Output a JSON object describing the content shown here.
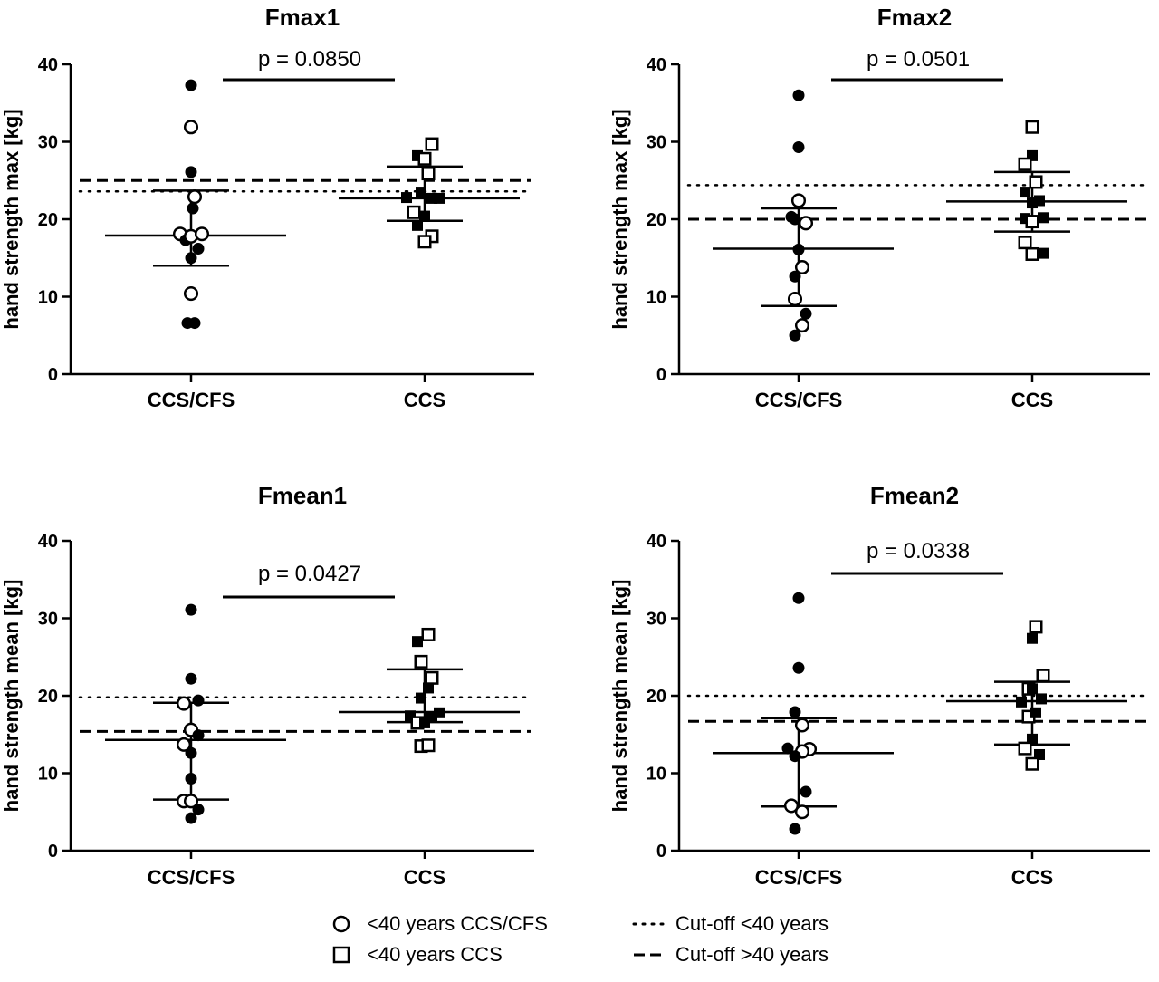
{
  "chart_data": [
    {
      "type": "scatter",
      "title": "Fmax1",
      "ylabel": "hand strength max [kg]",
      "ylim": [
        0,
        40
      ],
      "yticks": [
        0,
        10,
        20,
        30,
        40
      ],
      "categories": [
        "CCS/CFS",
        "CCS"
      ],
      "p_value": "p = 0.0850",
      "cutoff_under40": 23.6,
      "cutoff_over40": 25.0,
      "groups": [
        {
          "category": "CCS/CFS",
          "median": 17.9,
          "q1": 14.0,
          "q3": 23.7,
          "points": [
            {
              "offset": 0,
              "y": 37.3,
              "filled": true
            },
            {
              "offset": 0,
              "y": 31.9,
              "filled": false
            },
            {
              "offset": 0,
              "y": 26.1,
              "filled": true
            },
            {
              "offset": 0.4,
              "y": 22.9,
              "filled": false
            },
            {
              "offset": 0.2,
              "y": 21.4,
              "filled": true
            },
            {
              "offset": -1.2,
              "y": 18.1,
              "filled": false
            },
            {
              "offset": -0.6,
              "y": 17.3,
              "filled": true
            },
            {
              "offset": 0,
              "y": 17.8,
              "filled": false
            },
            {
              "offset": 0.8,
              "y": 16.2,
              "filled": true
            },
            {
              "offset": 1.2,
              "y": 18.1,
              "filled": false
            },
            {
              "offset": 0,
              "y": 15.0,
              "filled": true
            },
            {
              "offset": 0,
              "y": 10.4,
              "filled": false
            },
            {
              "offset": -0.4,
              "y": 6.6,
              "filled": true
            },
            {
              "offset": 0.4,
              "y": 6.6,
              "filled": true
            }
          ]
        },
        {
          "category": "CCS",
          "median": 22.7,
          "q1": 19.8,
          "q3": 26.8,
          "points": [
            {
              "offset": 0.8,
              "y": 29.7,
              "filled": false
            },
            {
              "offset": -0.8,
              "y": 28.2,
              "filled": true
            },
            {
              "offset": 0,
              "y": 27.8,
              "filled": false
            },
            {
              "offset": 0.4,
              "y": 25.9,
              "filled": false
            },
            {
              "offset": -2.0,
              "y": 22.8,
              "filled": true
            },
            {
              "offset": -0.4,
              "y": 23.5,
              "filled": true
            },
            {
              "offset": 0.8,
              "y": 22.7,
              "filled": true
            },
            {
              "offset": 1.6,
              "y": 22.7,
              "filled": true
            },
            {
              "offset": -1.2,
              "y": 20.9,
              "filled": false
            },
            {
              "offset": -0.8,
              "y": 19.2,
              "filled": true
            },
            {
              "offset": 0,
              "y": 20.4,
              "filled": true
            },
            {
              "offset": 0.8,
              "y": 17.8,
              "filled": false
            },
            {
              "offset": 0,
              "y": 17.1,
              "filled": false
            }
          ]
        }
      ]
    },
    {
      "type": "scatter",
      "title": "Fmax2",
      "ylabel": "hand strength max [kg]",
      "ylim": [
        0,
        40
      ],
      "yticks": [
        0,
        10,
        20,
        30,
        40
      ],
      "categories": [
        "CCS/CFS",
        "CCS"
      ],
      "p_value": "p = 0.0501",
      "cutoff_under40": 24.4,
      "cutoff_over40": 20.0,
      "groups": [
        {
          "category": "CCS/CFS",
          "median": 16.2,
          "q1": 8.8,
          "q3": 21.4,
          "points": [
            {
              "offset": 0,
              "y": 36.0,
              "filled": true
            },
            {
              "offset": 0,
              "y": 29.3,
              "filled": true
            },
            {
              "offset": 0,
              "y": 22.4,
              "filled": false
            },
            {
              "offset": -0.8,
              "y": 20.3,
              "filled": true
            },
            {
              "offset": -0.4,
              "y": 20.0,
              "filled": true
            },
            {
              "offset": 0.8,
              "y": 19.5,
              "filled": false
            },
            {
              "offset": 0,
              "y": 16.1,
              "filled": true
            },
            {
              "offset": 0.4,
              "y": 13.8,
              "filled": false
            },
            {
              "offset": -0.4,
              "y": 12.6,
              "filled": true
            },
            {
              "offset": -0.4,
              "y": 9.7,
              "filled": false
            },
            {
              "offset": 0.8,
              "y": 7.8,
              "filled": true
            },
            {
              "offset": 0.4,
              "y": 6.3,
              "filled": false
            },
            {
              "offset": -0.4,
              "y": 5.0,
              "filled": true
            }
          ]
        },
        {
          "category": "CCS",
          "median": 22.3,
          "q1": 18.4,
          "q3": 26.1,
          "points": [
            {
              "offset": 0,
              "y": 31.9,
              "filled": false
            },
            {
              "offset": 0,
              "y": 28.2,
              "filled": true
            },
            {
              "offset": -0.8,
              "y": 27.1,
              "filled": false
            },
            {
              "offset": 0.4,
              "y": 24.8,
              "filled": false
            },
            {
              "offset": -0.8,
              "y": 23.5,
              "filled": true
            },
            {
              "offset": 0.8,
              "y": 22.4,
              "filled": true
            },
            {
              "offset": 0,
              "y": 22.1,
              "filled": true
            },
            {
              "offset": -0.8,
              "y": 20.1,
              "filled": true
            },
            {
              "offset": 1.2,
              "y": 20.2,
              "filled": true
            },
            {
              "offset": 0,
              "y": 19.7,
              "filled": false
            },
            {
              "offset": -0.8,
              "y": 17.0,
              "filled": false
            },
            {
              "offset": 0,
              "y": 15.5,
              "filled": false
            },
            {
              "offset": 1.2,
              "y": 15.6,
              "filled": true
            }
          ]
        }
      ]
    },
    {
      "type": "scatter",
      "title": "Fmean1",
      "ylabel": "hand strength mean [kg]",
      "ylim": [
        0,
        40
      ],
      "yticks": [
        0,
        10,
        20,
        30,
        40
      ],
      "categories": [
        "CCS/CFS",
        "CCS"
      ],
      "p_value": "p = 0.0427",
      "cutoff_under40": 19.8,
      "cutoff_over40": 15.4,
      "groups": [
        {
          "category": "CCS/CFS",
          "median": 14.3,
          "q1": 6.6,
          "q3": 19.1,
          "points": [
            {
              "offset": 0,
              "y": 31.1,
              "filled": true
            },
            {
              "offset": 0,
              "y": 22.2,
              "filled": true
            },
            {
              "offset": -0.8,
              "y": 19.0,
              "filled": false
            },
            {
              "offset": 0.8,
              "y": 19.4,
              "filled": true
            },
            {
              "offset": 0,
              "y": 15.6,
              "filled": false
            },
            {
              "offset": 0.8,
              "y": 14.9,
              "filled": true
            },
            {
              "offset": -0.8,
              "y": 13.7,
              "filled": false
            },
            {
              "offset": 0,
              "y": 12.6,
              "filled": true
            },
            {
              "offset": 0,
              "y": 9.3,
              "filled": true
            },
            {
              "offset": -0.8,
              "y": 6.4,
              "filled": false
            },
            {
              "offset": 0,
              "y": 6.4,
              "filled": false
            },
            {
              "offset": 0.8,
              "y": 5.3,
              "filled": true
            },
            {
              "offset": 0,
              "y": 4.2,
              "filled": true
            }
          ]
        },
        {
          "category": "CCS",
          "median": 17.9,
          "q1": 16.6,
          "q3": 23.4,
          "points": [
            {
              "offset": 0.4,
              "y": 27.9,
              "filled": false
            },
            {
              "offset": -0.8,
              "y": 27.0,
              "filled": true
            },
            {
              "offset": -0.4,
              "y": 24.4,
              "filled": false
            },
            {
              "offset": 0.8,
              "y": 22.3,
              "filled": false
            },
            {
              "offset": 0.4,
              "y": 21.0,
              "filled": true
            },
            {
              "offset": -0.4,
              "y": 19.7,
              "filled": true
            },
            {
              "offset": -1.6,
              "y": 17.4,
              "filled": true
            },
            {
              "offset": 1.6,
              "y": 17.8,
              "filled": true
            },
            {
              "offset": -0.8,
              "y": 16.5,
              "filled": false
            },
            {
              "offset": 0,
              "y": 16.5,
              "filled": true
            },
            {
              "offset": 0.8,
              "y": 17.3,
              "filled": true
            },
            {
              "offset": -0.4,
              "y": 13.5,
              "filled": false
            },
            {
              "offset": 0.4,
              "y": 13.6,
              "filled": false
            }
          ]
        }
      ]
    },
    {
      "type": "scatter",
      "title": "Fmean2",
      "ylabel": "hand strength mean [kg]",
      "ylim": [
        0,
        40
      ],
      "yticks": [
        0,
        10,
        20,
        30,
        40
      ],
      "categories": [
        "CCS/CFS",
        "CCS"
      ],
      "p_value": "p = 0.0338",
      "cutoff_under40": 20.0,
      "cutoff_over40": 16.7,
      "groups": [
        {
          "category": "CCS/CFS",
          "median": 12.6,
          "q1": 5.7,
          "q3": 17.1,
          "points": [
            {
              "offset": 0,
              "y": 32.6,
              "filled": true
            },
            {
              "offset": 0,
              "y": 23.6,
              "filled": true
            },
            {
              "offset": -0.4,
              "y": 17.9,
              "filled": true
            },
            {
              "offset": 0.4,
              "y": 16.2,
              "filled": false
            },
            {
              "offset": -1.2,
              "y": 13.2,
              "filled": true
            },
            {
              "offset": 1.2,
              "y": 13.1,
              "filled": false
            },
            {
              "offset": 0.4,
              "y": 12.8,
              "filled": false
            },
            {
              "offset": -0.4,
              "y": 12.2,
              "filled": true
            },
            {
              "offset": 0.8,
              "y": 7.6,
              "filled": true
            },
            {
              "offset": -0.8,
              "y": 5.8,
              "filled": false
            },
            {
              "offset": 0.4,
              "y": 5.0,
              "filled": false
            },
            {
              "offset": -0.4,
              "y": 2.8,
              "filled": true
            }
          ]
        },
        {
          "category": "CCS",
          "median": 19.3,
          "q1": 13.7,
          "q3": 21.8,
          "points": [
            {
              "offset": 0.4,
              "y": 28.9,
              "filled": false
            },
            {
              "offset": 0,
              "y": 27.4,
              "filled": true
            },
            {
              "offset": 1.2,
              "y": 22.6,
              "filled": false
            },
            {
              "offset": -0.4,
              "y": 20.9,
              "filled": false
            },
            {
              "offset": 0,
              "y": 20.9,
              "filled": true
            },
            {
              "offset": -1.2,
              "y": 19.2,
              "filled": true
            },
            {
              "offset": 1.0,
              "y": 19.6,
              "filled": true
            },
            {
              "offset": -0.4,
              "y": 17.3,
              "filled": false
            },
            {
              "offset": 0.4,
              "y": 17.8,
              "filled": true
            },
            {
              "offset": 0,
              "y": 14.4,
              "filled": true
            },
            {
              "offset": -0.8,
              "y": 13.2,
              "filled": false
            },
            {
              "offset": 0.8,
              "y": 12.4,
              "filled": true
            },
            {
              "offset": 0,
              "y": 11.2,
              "filled": false
            }
          ]
        }
      ]
    }
  ],
  "legend": {
    "items": [
      {
        "symbol": "circle-open",
        "label": "<40 years CCS/CFS"
      },
      {
        "symbol": "square-open",
        "label": "<40 years CCS"
      },
      {
        "symbol": "dotted-line",
        "label": "Cut-off <40 years"
      },
      {
        "symbol": "dashed-line",
        "label": "Cut-off >40 years"
      }
    ]
  },
  "colors": {
    "marker": "#000000",
    "background": "#ffffff"
  }
}
